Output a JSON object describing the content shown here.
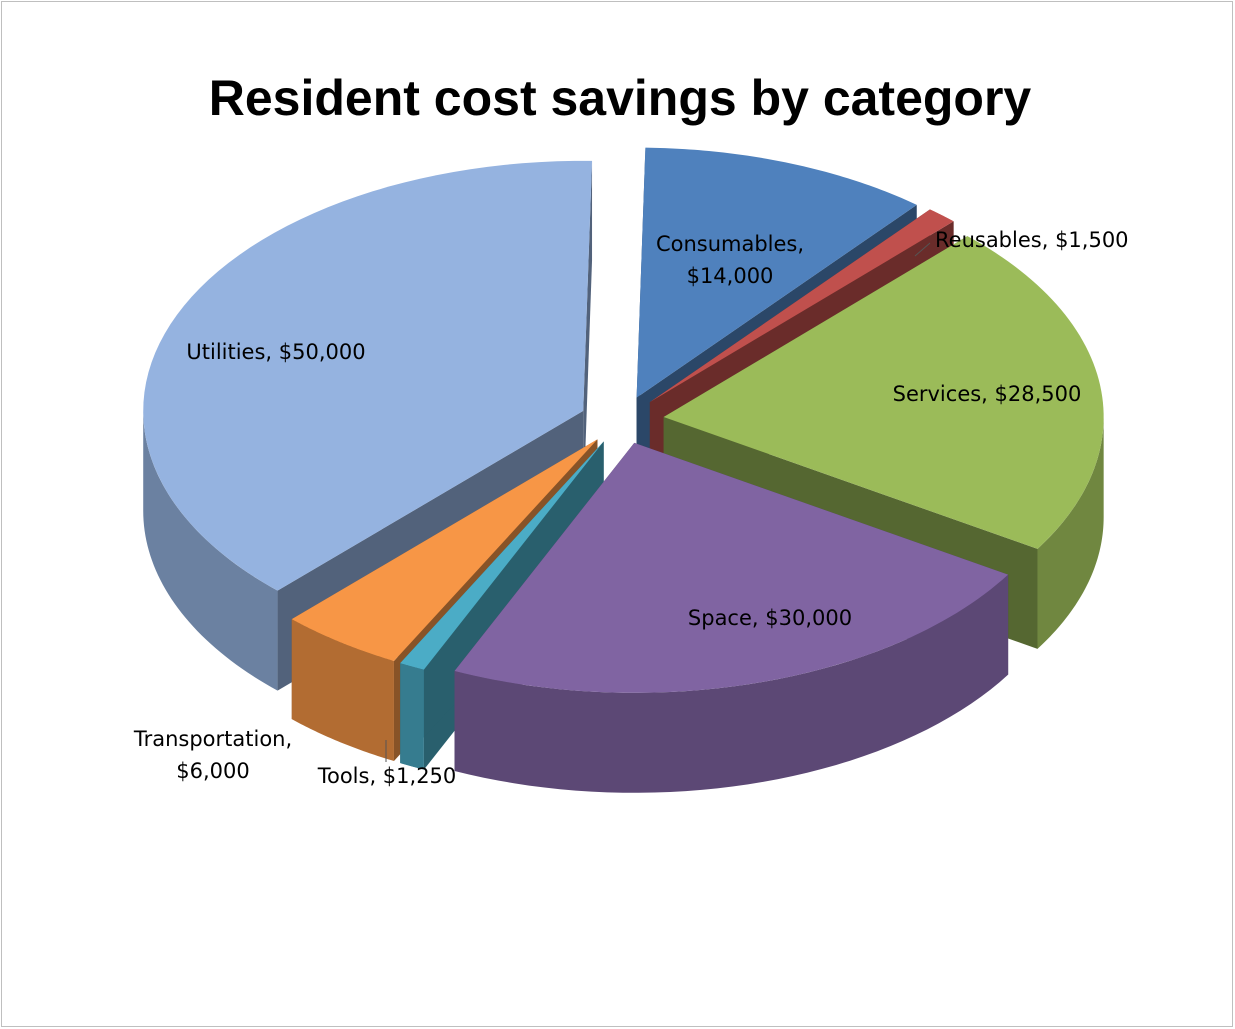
{
  "chart_data": {
    "type": "pie3d",
    "title": "Resident cost savings by category",
    "values": [
      14000,
      1500,
      28500,
      30000,
      1250,
      6000,
      50000
    ],
    "value_labels": [
      "Consumables, $14,000",
      "Reusables, $1,500",
      "Services, $28,500",
      "Space, $30,000",
      "Tools, $1,250",
      "Transportation, $6,000",
      "Utilities, $50,000"
    ],
    "colors": [
      "#4f81bd",
      "#c0504d",
      "#9bbb59",
      "#8064a2",
      "#4bacc6",
      "#f79646",
      "#95b3e0"
    ]
  }
}
